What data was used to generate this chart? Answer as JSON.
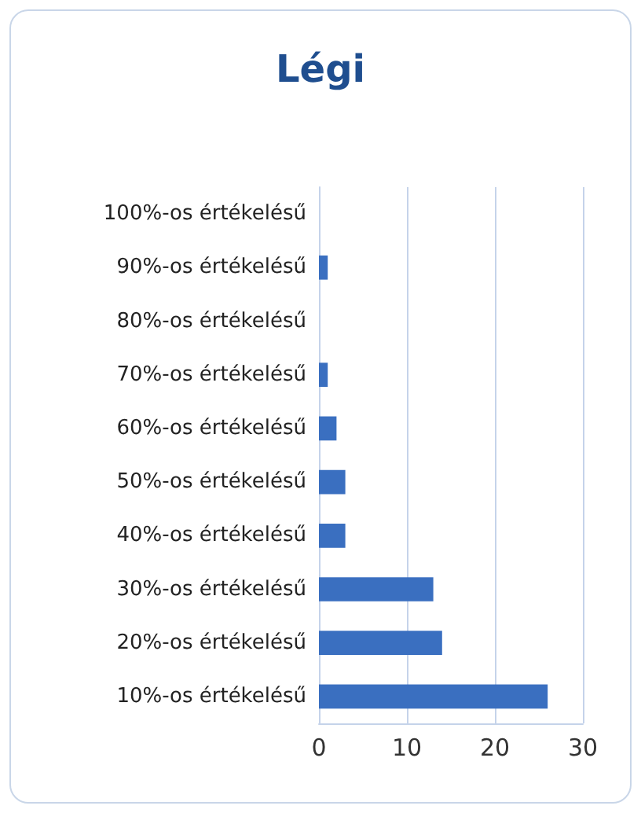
{
  "chart_data": {
    "type": "bar",
    "title": "Légi",
    "orientation": "horizontal",
    "categories": [
      "100%-os értékelésű",
      "90%-os értékelésű",
      "80%-os értékelésű",
      "70%-os értékelésű",
      "60%-os értékelésű",
      "50%-os értékelésű",
      "40%-os értékelésű",
      "30%-os értékelésű",
      "20%-os értékelésű",
      "10%-os értékelésű"
    ],
    "values": [
      0,
      1,
      0,
      1,
      2,
      3,
      3,
      13,
      14,
      26
    ],
    "color": "#3a6fc0",
    "xlim": [
      0,
      30
    ],
    "xticks": [
      0,
      10,
      20,
      30
    ],
    "grid": "x"
  }
}
